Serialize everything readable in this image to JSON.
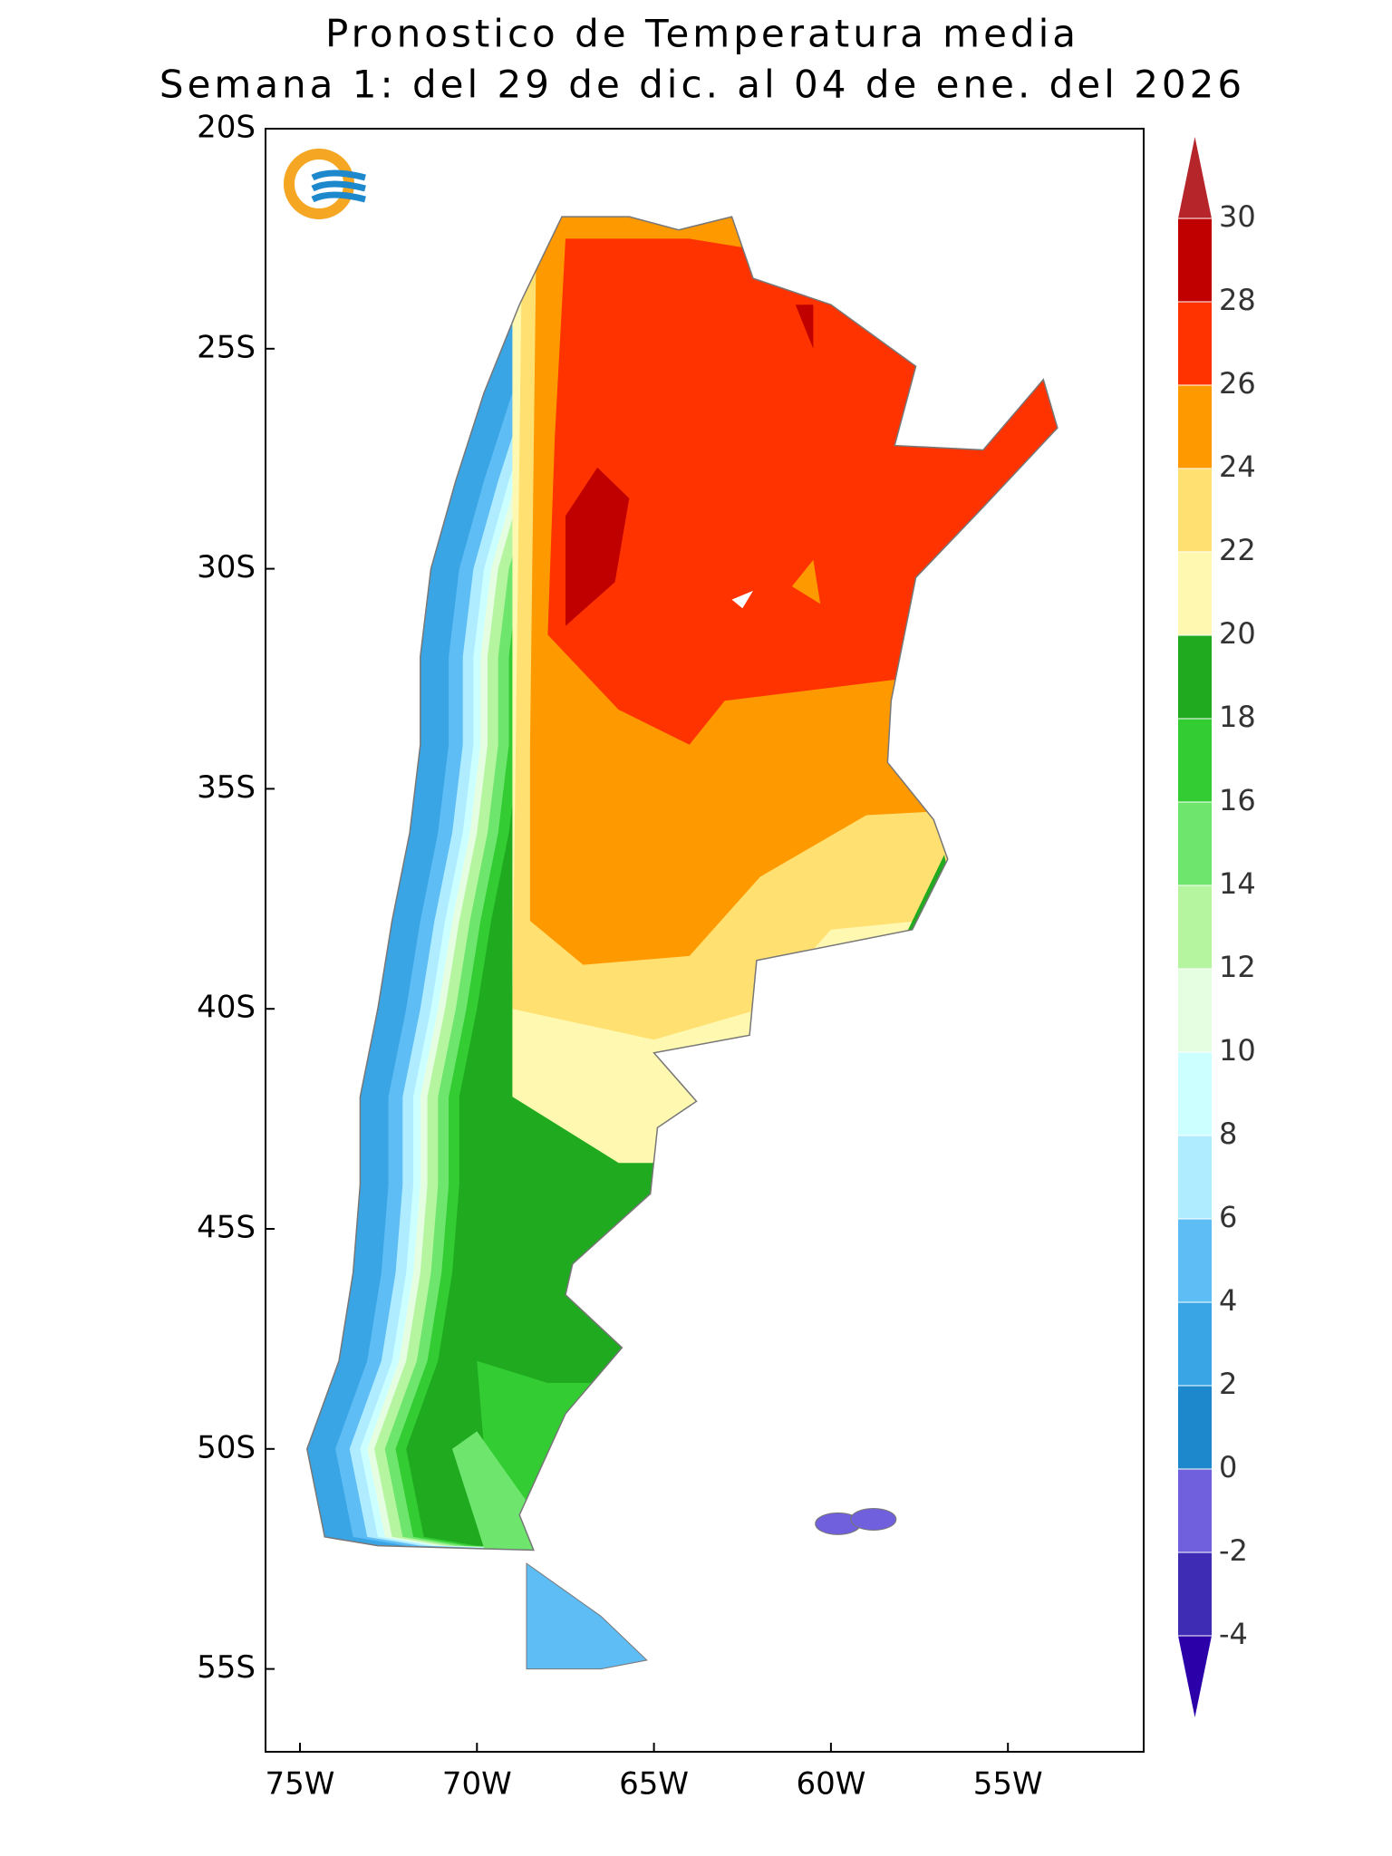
{
  "title": [
    "Pronostico de Temperatura media",
    "Semana 1: del 29 de dic. al 04 de ene. del 2026"
  ],
  "map": {
    "lat_ticks": [
      "20S",
      "25S",
      "30S",
      "35S",
      "40S",
      "45S",
      "50S",
      "55S"
    ],
    "lon_ticks": [
      "75W",
      "70W",
      "65W",
      "60W",
      "55W"
    ]
  },
  "colorbar": {
    "levels": [
      -4,
      -2,
      0,
      2,
      4,
      6,
      8,
      10,
      12,
      14,
      16,
      18,
      20,
      22,
      24,
      26,
      28,
      30
    ],
    "colors": [
      "#2b00a8",
      "#3f2cb5",
      "#7060dd",
      "#1e88cc",
      "#3aa5e5",
      "#5fbdf5",
      "#b0ecff",
      "#ccffff",
      "#e5fde0",
      "#b5f5a0",
      "#6ee66e",
      "#33cc33",
      "#1faa1f",
      "#fff8b0",
      "#ffe070",
      "#ff9900",
      "#ff3300",
      "#c00000",
      "#b5252a"
    ]
  }
}
